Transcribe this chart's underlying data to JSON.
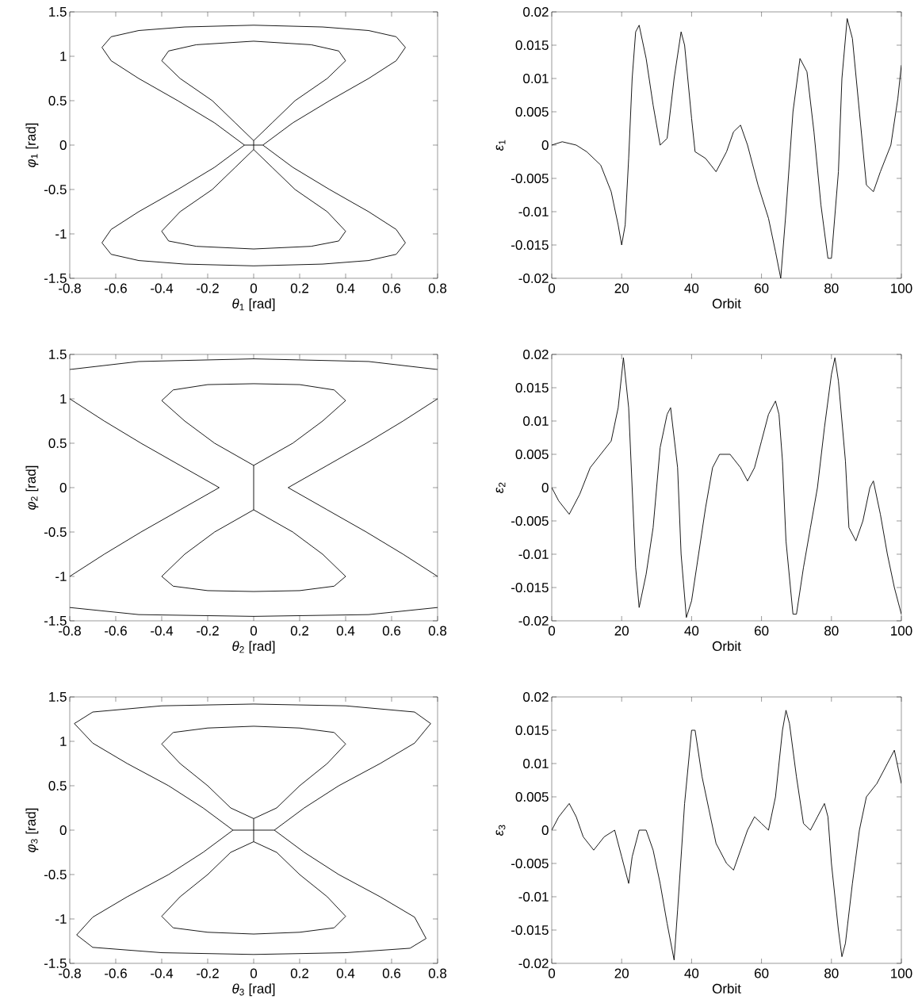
{
  "chart_data": [
    {
      "type": "line",
      "xlabel": "*θ*$_{1}$ [rad]",
      "ylabel": "*φ*$_{1}$ [rad]",
      "xlim": [
        -0.8,
        0.8
      ],
      "ylim": [
        -1.5,
        1.5
      ],
      "xticks": [
        -0.8,
        -0.6,
        -0.4,
        -0.2,
        0,
        0.2,
        0.4,
        0.6,
        0.8
      ],
      "yticks": [
        -1.5,
        -1,
        -0.5,
        0,
        0.5,
        1,
        1.5
      ],
      "series": [
        {
          "color": "#000000",
          "x": [
            0.04,
            0.17,
            0.33,
            0.5,
            0.62,
            0.66,
            0.62,
            0.5,
            0.3,
            0,
            -0.3,
            -0.5,
            -0.62,
            -0.66,
            -0.62,
            -0.5,
            -0.33,
            -0.17,
            -0.04,
            0.04,
            0.17,
            0.33,
            0.5,
            0.62,
            0.66,
            0.62,
            0.5,
            0.3,
            0,
            -0.3,
            -0.5,
            -0.62,
            -0.66,
            -0.62,
            -0.5,
            -0.33,
            -0.17,
            -0.04
          ],
          "values": [
            0,
            0.25,
            0.5,
            0.75,
            0.95,
            1.1,
            1.22,
            1.29,
            1.33,
            1.35,
            1.33,
            1.29,
            1.22,
            1.1,
            0.95,
            0.75,
            0.5,
            0.25,
            0,
            0,
            -0.25,
            -0.5,
            -0.75,
            -0.95,
            -1.1,
            -1.23,
            -1.3,
            -1.34,
            -1.36,
            -1.34,
            -1.3,
            -1.23,
            -1.1,
            -0.95,
            -0.75,
            -0.5,
            -0.25,
            0
          ]
        },
        {
          "color": "#000000",
          "x": [
            0,
            0.08,
            0.18,
            0.32,
            0.4,
            0.37,
            0.25,
            0,
            -0.25,
            -0.37,
            -0.4,
            -0.32,
            -0.18,
            -0.08,
            0,
            0,
            0.08,
            0.18,
            0.32,
            0.4,
            0.37,
            0.25,
            0,
            -0.25,
            -0.37,
            -0.4,
            -0.32,
            -0.18,
            -0.08,
            0
          ],
          "values": [
            0.05,
            0.25,
            0.5,
            0.75,
            0.95,
            1.06,
            1.13,
            1.17,
            1.13,
            1.06,
            0.95,
            0.75,
            0.5,
            0.25,
            0.05,
            -0.05,
            -0.25,
            -0.5,
            -0.75,
            -0.97,
            -1.08,
            -1.14,
            -1.17,
            -1.14,
            -1.08,
            -0.97,
            -0.75,
            -0.5,
            -0.25,
            -0.05
          ]
        }
      ]
    },
    {
      "type": "line",
      "xlabel": "Orbit",
      "ylabel": "*ε*$_{1}$",
      "xlim": [
        0,
        100
      ],
      "ylim": [
        -0.02,
        0.02
      ],
      "xticks": [
        0,
        20,
        40,
        60,
        80,
        100
      ],
      "yticks": [
        -0.02,
        -0.015,
        -0.01,
        -0.005,
        0,
        0.005,
        0.01,
        0.015,
        0.02
      ],
      "series": [
        {
          "color": "#000000",
          "x": [
            0,
            3,
            7,
            10,
            14,
            17,
            19,
            20,
            21,
            22,
            23,
            24,
            25,
            27,
            29,
            31,
            33,
            35,
            37,
            38,
            40,
            41,
            44,
            47,
            50,
            52,
            54,
            56,
            59,
            62,
            64,
            65.5,
            67,
            69,
            71,
            73,
            75,
            77,
            79,
            80,
            82,
            83,
            84.5,
            86,
            88,
            90,
            92,
            94,
            97,
            99,
            100
          ],
          "values": [
            0,
            0.0005,
            0,
            -0.001,
            -0.003,
            -0.007,
            -0.012,
            -0.015,
            -0.012,
            -0.002,
            0.01,
            0.017,
            0.018,
            0.013,
            0.006,
            0,
            0.001,
            0.01,
            0.017,
            0.015,
            0.004,
            -0.001,
            -0.002,
            -0.004,
            -0.001,
            0.002,
            0.003,
            0,
            -0.006,
            -0.011,
            -0.016,
            -0.02,
            -0.01,
            0.005,
            0.013,
            0.011,
            0.002,
            -0.009,
            -0.017,
            -0.017,
            -0.004,
            0.01,
            0.019,
            0.016,
            0.005,
            -0.006,
            -0.007,
            -0.004,
            0,
            0.007,
            0.012
          ]
        }
      ]
    },
    {
      "type": "line",
      "xlabel": "*θ*$_{2}$ [rad]",
      "ylabel": "*φ*$_{2}$ [rad]",
      "xlim": [
        -0.8,
        0.8
      ],
      "ylim": [
        -1.5,
        1.5
      ],
      "xticks": [
        -0.8,
        -0.6,
        -0.4,
        -0.2,
        0,
        0.2,
        0.4,
        0.6,
        0.8
      ],
      "yticks": [
        -1.5,
        -1,
        -0.5,
        0,
        0.5,
        1,
        1.5
      ],
      "series": [
        {
          "color": "#000000",
          "x": [
            0.8,
            0.5,
            0,
            -0.5,
            -0.8
          ],
          "values": [
            1.33,
            1.42,
            1.45,
            1.42,
            1.33
          ]
        },
        {
          "color": "#000000",
          "x": [
            0.8,
            0.5,
            0,
            -0.5,
            -0.8
          ],
          "values": [
            -1.35,
            -1.43,
            -1.45,
            -1.43,
            -1.35
          ]
        },
        {
          "color": "#000000",
          "x": [
            -0.8,
            -0.65,
            -0.49,
            -0.32,
            -0.15,
            -0.32,
            -0.49,
            -0.65,
            -0.8
          ],
          "values": [
            1.0,
            0.75,
            0.5,
            0.25,
            0,
            -0.25,
            -0.5,
            -0.75,
            -1.0
          ]
        },
        {
          "color": "#000000",
          "x": [
            0.8,
            0.65,
            0.49,
            0.32,
            0.15,
            0.32,
            0.49,
            0.65,
            0.8
          ],
          "values": [
            1.0,
            0.75,
            0.5,
            0.25,
            0,
            -0.25,
            -0.5,
            -0.75,
            -1.0
          ]
        },
        {
          "color": "#000000",
          "x": [
            0,
            0.17,
            0.3,
            0.4,
            0.35,
            0.2,
            0,
            -0.2,
            -0.35,
            -0.4,
            -0.3,
            -0.17,
            0,
            0,
            0.17,
            0.3,
            0.4,
            0.35,
            0.2,
            0,
            -0.2,
            -0.35,
            -0.4,
            -0.3,
            -0.17,
            0
          ],
          "values": [
            0.25,
            0.5,
            0.75,
            0.98,
            1.1,
            1.16,
            1.17,
            1.16,
            1.1,
            0.98,
            0.75,
            0.5,
            0.25,
            -0.25,
            -0.5,
            -0.75,
            -1.0,
            -1.11,
            -1.16,
            -1.17,
            -1.16,
            -1.11,
            -1.0,
            -0.75,
            -0.5,
            -0.25
          ]
        }
      ]
    },
    {
      "type": "line",
      "xlabel": "Orbit",
      "ylabel": "*ε*$_{2}$",
      "xlim": [
        0,
        100
      ],
      "ylim": [
        -0.02,
        0.02
      ],
      "xticks": [
        0,
        20,
        40,
        60,
        80,
        100
      ],
      "yticks": [
        -0.02,
        -0.015,
        -0.01,
        -0.005,
        0,
        0.005,
        0.01,
        0.015,
        0.02
      ],
      "series": [
        {
          "color": "#000000",
          "x": [
            0,
            2,
            5,
            8,
            11,
            14,
            17,
            19,
            20.5,
            22,
            23,
            24,
            25,
            27,
            29,
            31,
            33,
            34,
            36,
            37,
            38.5,
            40,
            42,
            44,
            46,
            48,
            51,
            54,
            56,
            58,
            60,
            62,
            64,
            65,
            66,
            67,
            69,
            70,
            72,
            74,
            76,
            78,
            80,
            81,
            82,
            84,
            85,
            87,
            89,
            91,
            92,
            94,
            96,
            98,
            100
          ],
          "values": [
            0,
            -0.002,
            -0.004,
            -0.001,
            0.003,
            0.005,
            0.007,
            0.012,
            0.0195,
            0.012,
            0,
            -0.012,
            -0.018,
            -0.013,
            -0.006,
            0.006,
            0.011,
            0.012,
            0.003,
            -0.01,
            -0.0195,
            -0.017,
            -0.01,
            -0.003,
            0.003,
            0.005,
            0.005,
            0.003,
            0.001,
            0.003,
            0.007,
            0.011,
            0.013,
            0.011,
            0.004,
            -0.008,
            -0.019,
            -0.019,
            -0.012,
            -0.006,
            0,
            0.009,
            0.017,
            0.0195,
            0.016,
            0.004,
            -0.006,
            -0.008,
            -0.005,
            0,
            0.001,
            -0.004,
            -0.01,
            -0.015,
            -0.019
          ]
        }
      ]
    },
    {
      "type": "line",
      "xlabel": "*θ*$_{3}$ [rad]",
      "ylabel": "*φ*$_{3}$ [rad]",
      "xlim": [
        -0.8,
        0.8
      ],
      "ylim": [
        -1.5,
        1.5
      ],
      "xticks": [
        -0.8,
        -0.6,
        -0.4,
        -0.2,
        0,
        0.2,
        0.4,
        0.6,
        0.8
      ],
      "yticks": [
        -1.5,
        -1,
        -0.5,
        0,
        0.5,
        1,
        1.5
      ],
      "series": [
        {
          "color": "#000000",
          "x": [
            0.09,
            0.22,
            0.37,
            0.55,
            0.7,
            0.77,
            0.7,
            0.4,
            0,
            -0.4,
            -0.7,
            -0.78,
            -0.7,
            -0.55,
            -0.37,
            -0.22,
            -0.09,
            0.09,
            0.22,
            0.37,
            0.55,
            0.7,
            0.75,
            0.68,
            0.4,
            0,
            -0.4,
            -0.7,
            -0.77,
            -0.7,
            -0.55,
            -0.37,
            -0.22,
            -0.09
          ],
          "values": [
            0,
            0.25,
            0.5,
            0.75,
            0.98,
            1.2,
            1.33,
            1.4,
            1.42,
            1.4,
            1.33,
            1.2,
            0.98,
            0.75,
            0.5,
            0.25,
            0,
            0,
            -0.25,
            -0.5,
            -0.75,
            -0.98,
            -1.22,
            -1.33,
            -1.38,
            -1.4,
            -1.38,
            -1.32,
            -1.18,
            -0.98,
            -0.75,
            -0.5,
            -0.25,
            0
          ]
        },
        {
          "color": "#000000",
          "x": [
            0,
            0.1,
            0.2,
            0.32,
            0.4,
            0.35,
            0.2,
            0,
            -0.2,
            -0.35,
            -0.4,
            -0.32,
            -0.2,
            -0.1,
            0,
            0,
            0.1,
            0.2,
            0.32,
            0.4,
            0.35,
            0.2,
            0,
            -0.2,
            -0.35,
            -0.4,
            -0.32,
            -0.2,
            -0.1,
            0
          ],
          "values": [
            0.13,
            0.25,
            0.5,
            0.75,
            0.97,
            1.1,
            1.15,
            1.17,
            1.15,
            1.1,
            0.97,
            0.75,
            0.5,
            0.25,
            0.13,
            -0.13,
            -0.25,
            -0.5,
            -0.75,
            -0.97,
            -1.1,
            -1.15,
            -1.17,
            -1.15,
            -1.1,
            -0.97,
            -0.75,
            -0.5,
            -0.25,
            -0.13
          ]
        }
      ]
    },
    {
      "type": "line",
      "xlabel": "Orbit",
      "ylabel": "*ε*$_{3}$",
      "xlim": [
        0,
        100
      ],
      "ylim": [
        -0.02,
        0.02
      ],
      "xticks": [
        0,
        20,
        40,
        60,
        80,
        100
      ],
      "yticks": [
        -0.02,
        -0.015,
        -0.01,
        -0.005,
        0,
        0.005,
        0.01,
        0.015,
        0.02
      ],
      "series": [
        {
          "color": "#000000",
          "x": [
            0,
            2,
            5,
            7,
            9,
            12,
            15,
            18,
            20,
            22,
            23,
            25,
            27,
            29,
            31,
            33,
            35,
            36,
            38,
            40,
            41,
            43,
            45,
            47,
            50,
            52,
            54,
            56,
            58,
            60,
            62,
            64,
            66,
            67,
            68,
            70,
            72,
            74,
            76,
            78,
            79,
            80,
            82,
            83,
            84,
            86,
            88,
            90,
            93,
            96,
            98,
            100
          ],
          "values": [
            0,
            0.002,
            0.004,
            0.002,
            -0.001,
            -0.003,
            -0.001,
            0,
            -0.004,
            -0.008,
            -0.004,
            0,
            0,
            -0.003,
            -0.008,
            -0.014,
            -0.0195,
            -0.012,
            0.004,
            0.015,
            0.015,
            0.008,
            0.003,
            -0.002,
            -0.005,
            -0.006,
            -0.003,
            0,
            0.002,
            0.001,
            0,
            0.005,
            0.015,
            0.018,
            0.016,
            0.008,
            0.001,
            0,
            0.002,
            0.004,
            0.002,
            -0.005,
            -0.015,
            -0.019,
            -0.017,
            -0.008,
            0,
            0.005,
            0.007,
            0.01,
            0.012,
            0.007
          ]
        }
      ]
    }
  ]
}
